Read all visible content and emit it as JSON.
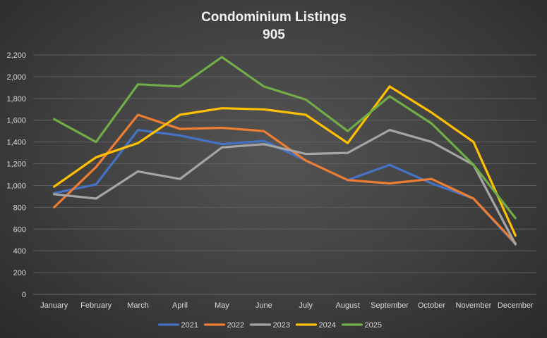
{
  "chart_data": {
    "type": "line",
    "title": "Condominium  Listings",
    "subtitle": "905",
    "xlabel": "",
    "ylabel": "",
    "categories": [
      "January",
      "February",
      "March",
      "April",
      "May",
      "June",
      "July",
      "August",
      "September",
      "October",
      "November",
      "December"
    ],
    "ylim": [
      0,
      2200
    ],
    "yticks": [
      "0",
      "200",
      "400",
      "600",
      "800",
      "1,000",
      "1,200",
      "1,400",
      "1,600",
      "1,800",
      "2,000",
      "2,200"
    ],
    "ytick_values": [
      0,
      200,
      400,
      600,
      800,
      1000,
      1200,
      1400,
      1600,
      1800,
      2000,
      2200
    ],
    "grid": true,
    "legend_position": "bottom",
    "series": [
      {
        "name": "2021",
        "color": "#4472c4",
        "values": [
          930,
          1010,
          1510,
          1460,
          1380,
          1410,
          1230,
          1050,
          1190,
          1020,
          880,
          460
        ]
      },
      {
        "name": "2022",
        "color": "#ed7d31",
        "values": [
          800,
          1170,
          1650,
          1520,
          1530,
          1500,
          1230,
          1050,
          1020,
          1060,
          880,
          470
        ]
      },
      {
        "name": "2023",
        "color": "#a5a5a5",
        "values": [
          920,
          880,
          1130,
          1060,
          1350,
          1380,
          1290,
          1300,
          1510,
          1400,
          1190,
          460
        ]
      },
      {
        "name": "2024",
        "color": "#ffc000",
        "values": [
          990,
          1260,
          1390,
          1650,
          1710,
          1700,
          1650,
          1390,
          1910,
          1670,
          1400,
          540
        ]
      },
      {
        "name": "2025",
        "color": "#70ad47",
        "values": [
          1610,
          1400,
          1930,
          1910,
          2180,
          1910,
          1790,
          1500,
          1820,
          1570,
          1190,
          700
        ]
      }
    ]
  }
}
